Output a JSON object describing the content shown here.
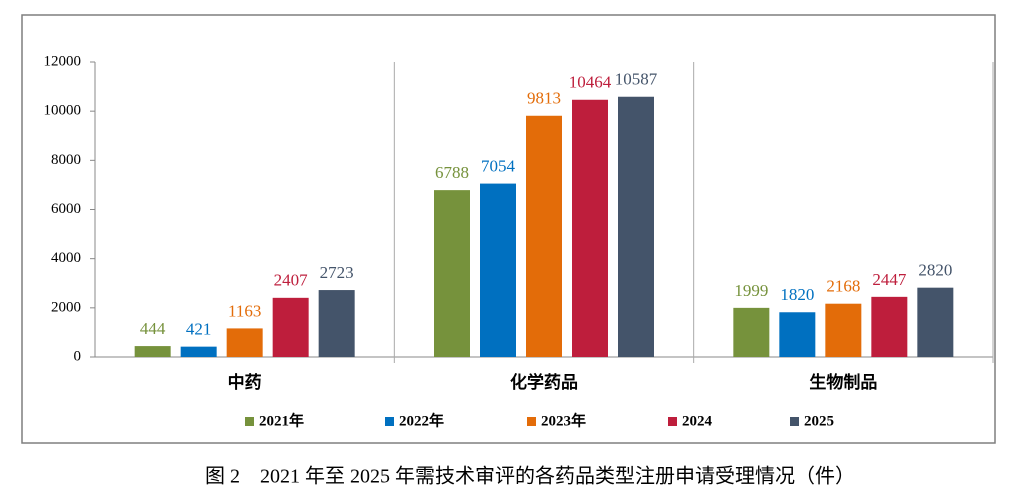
{
  "chart_data": {
    "type": "bar",
    "categories": [
      "中药",
      "化学药品",
      "生物制品"
    ],
    "series": [
      {
        "name": "2021年",
        "color": "#76923c",
        "values": [
          444,
          6788,
          1999
        ]
      },
      {
        "name": "2022年",
        "color": "#0070c0",
        "values": [
          421,
          7054,
          1820
        ]
      },
      {
        "name": "2023年",
        "color": "#e36c09",
        "values": [
          1163,
          9813,
          2168
        ]
      },
      {
        "name": "2024",
        "color": "#be1e3c",
        "values": [
          2407,
          10464,
          2447
        ]
      },
      {
        "name": "2025",
        "color": "#44546a",
        "values": [
          2723,
          10587,
          2820
        ]
      }
    ],
    "ylim": [
      0,
      12000
    ],
    "yticks": [
      0,
      2000,
      4000,
      6000,
      8000,
      10000,
      12000
    ],
    "legend": "bottom",
    "caption": "图 2　2021 年至 2025 年需技术审评的各药品类型注册申请受理情况（件）"
  }
}
